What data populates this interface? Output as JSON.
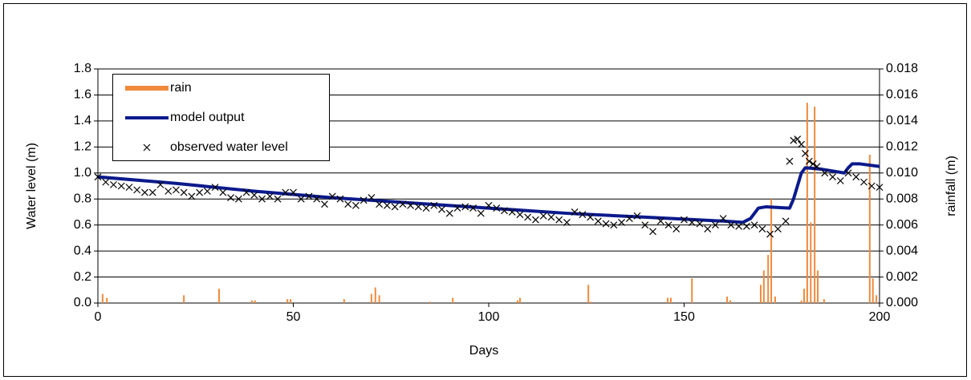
{
  "chart_data": {
    "type": "combo",
    "xlabel": "Days",
    "ylabel": "Water level (m)",
    "y2label": "rainfall (m)",
    "xlim": [
      0,
      200
    ],
    "xticks": [
      0,
      50,
      100,
      150,
      200
    ],
    "ylim": [
      0,
      1.8
    ],
    "yticks": [
      {
        "value": 0,
        "label": "0.0"
      },
      {
        "value": 0.2,
        "label": "0.2"
      },
      {
        "value": 0.4,
        "label": "0.4"
      },
      {
        "value": 0.6,
        "label": "0.6"
      },
      {
        "value": 0.8,
        "label": "0.8"
      },
      {
        "value": 1,
        "label": "1.0"
      },
      {
        "value": 1.2,
        "label": "1.2"
      },
      {
        "value": 1.4,
        "label": "1.4"
      },
      {
        "value": 1.6,
        "label": "1.6"
      },
      {
        "value": 1.8,
        "label": "1.8"
      }
    ],
    "y2lim": [
      0,
      0.018
    ],
    "y2ticks": [
      {
        "value": 0,
        "label": "0.000"
      },
      {
        "value": 0.002,
        "label": "0.002"
      },
      {
        "value": 0.004,
        "label": "0.004"
      },
      {
        "value": 0.006,
        "label": "0.006"
      },
      {
        "value": 0.008,
        "label": "0.008"
      },
      {
        "value": 0.01,
        "label": "0.010"
      },
      {
        "value": 0.012,
        "label": "0.012"
      },
      {
        "value": 0.014,
        "label": "0.014"
      },
      {
        "value": 0.016,
        "label": "0.016"
      },
      {
        "value": 0.018,
        "label": "0.018"
      }
    ],
    "grid": true,
    "legend": "upper left",
    "series": [
      {
        "name": "rain",
        "type": "bar",
        "axis": "y2",
        "color": "#f08a3c",
        "x": [
          1.2,
          2.3,
          22,
          31,
          39.4,
          40.2,
          48.5,
          49.3,
          63,
          70,
          71,
          72,
          85,
          90.8,
          107.4,
          108,
          125.5,
          126.3,
          145.8,
          146.6,
          152,
          161,
          161.8,
          169.6,
          170.4,
          171.5,
          172.3,
          173.3,
          180,
          180.7,
          181.5,
          182.4,
          183.4,
          184.2,
          185.8,
          197.5,
          198.3,
          199.2
        ],
        "values": [
          0.0007,
          0.0004,
          0.0006,
          0.0011,
          0.0002,
          0.0002,
          0.0003,
          0.0003,
          0.0003,
          0.0007,
          0.0012,
          0.0006,
          0.0001,
          0.0004,
          0.0002,
          0.0004,
          0.0014,
          0.0001,
          0.0004,
          0.0004,
          0.0019,
          0.0005,
          0.0002,
          0.0014,
          0.0025,
          0.0037,
          0.008,
          0.0005,
          0.0002,
          0.0011,
          0.0154,
          0.0062,
          0.0151,
          0.0025,
          0.0003,
          0.0114,
          0.0019,
          0.0006
        ]
      },
      {
        "name": "model output",
        "type": "line",
        "color": "#0a1a8c",
        "x": [
          0,
          20,
          40,
          60,
          80,
          100,
          120,
          140,
          160,
          165,
          167,
          169,
          171,
          177,
          178,
          179,
          180,
          181,
          185,
          191,
          192,
          193,
          195,
          200
        ],
        "values": [
          0.97,
          0.92,
          0.86,
          0.81,
          0.77,
          0.73,
          0.69,
          0.66,
          0.63,
          0.62,
          0.65,
          0.73,
          0.74,
          0.73,
          0.8,
          0.9,
          1.0,
          1.04,
          1.03,
          1.0,
          1.04,
          1.07,
          1.07,
          1.05
        ]
      },
      {
        "name": "observed water level",
        "type": "scatter",
        "color": "#000000",
        "x": [
          0,
          2,
          4,
          6,
          8,
          10,
          12,
          14,
          16,
          18,
          20,
          22,
          24,
          26,
          28,
          30,
          32,
          34,
          36,
          38,
          40,
          42,
          44,
          46,
          48,
          50,
          52,
          54,
          56,
          58,
          60,
          62,
          64,
          66,
          68,
          70,
          72,
          74,
          76,
          78,
          80,
          82,
          84,
          86,
          88,
          90,
          92,
          94,
          96,
          98,
          100,
          102,
          104,
          106,
          108,
          110,
          112,
          114,
          116,
          118,
          120,
          122,
          124,
          126,
          128,
          130,
          132,
          134,
          136,
          138,
          140,
          142,
          144,
          146,
          148,
          150,
          152,
          154,
          156,
          158,
          160,
          162,
          164,
          166,
          168,
          170,
          172,
          174,
          176,
          177,
          178,
          179,
          180,
          181,
          182,
          183,
          184,
          186,
          188,
          190,
          192,
          194,
          196,
          198,
          200
        ],
        "values": [
          0.97,
          0.93,
          0.91,
          0.9,
          0.89,
          0.87,
          0.85,
          0.85,
          0.91,
          0.86,
          0.87,
          0.85,
          0.82,
          0.85,
          0.86,
          0.89,
          0.85,
          0.81,
          0.8,
          0.85,
          0.83,
          0.8,
          0.82,
          0.8,
          0.85,
          0.85,
          0.8,
          0.82,
          0.8,
          0.76,
          0.82,
          0.8,
          0.76,
          0.75,
          0.79,
          0.81,
          0.76,
          0.75,
          0.74,
          0.76,
          0.75,
          0.74,
          0.73,
          0.75,
          0.72,
          0.69,
          0.73,
          0.74,
          0.73,
          0.69,
          0.75,
          0.73,
          0.71,
          0.7,
          0.68,
          0.66,
          0.64,
          0.67,
          0.66,
          0.64,
          0.62,
          0.7,
          0.68,
          0.66,
          0.63,
          0.61,
          0.6,
          0.62,
          0.65,
          0.67,
          0.6,
          0.55,
          0.63,
          0.6,
          0.57,
          0.64,
          0.62,
          0.61,
          0.57,
          0.6,
          0.65,
          0.6,
          0.59,
          0.59,
          0.6,
          0.57,
          0.53,
          0.57,
          0.63,
          1.09,
          1.25,
          1.26,
          1.22,
          1.15,
          1.09,
          1.07,
          1.05,
          1.0,
          0.97,
          0.94,
          1.0,
          0.97,
          0.93,
          0.9,
          0.89
        ]
      }
    ]
  }
}
